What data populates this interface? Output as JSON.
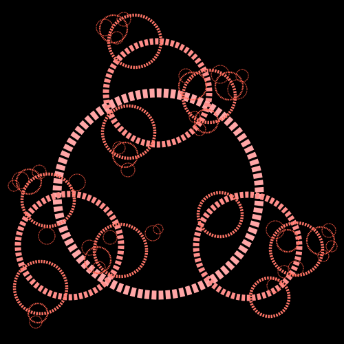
{
  "artwork": {
    "background": "#000000",
    "palette": [
      "#ffa6a6",
      "#ff8e8a",
      "#ff7668",
      "#ff634f",
      "#ff5a45"
    ],
    "motif": "recursive-dashed-circles"
  }
}
